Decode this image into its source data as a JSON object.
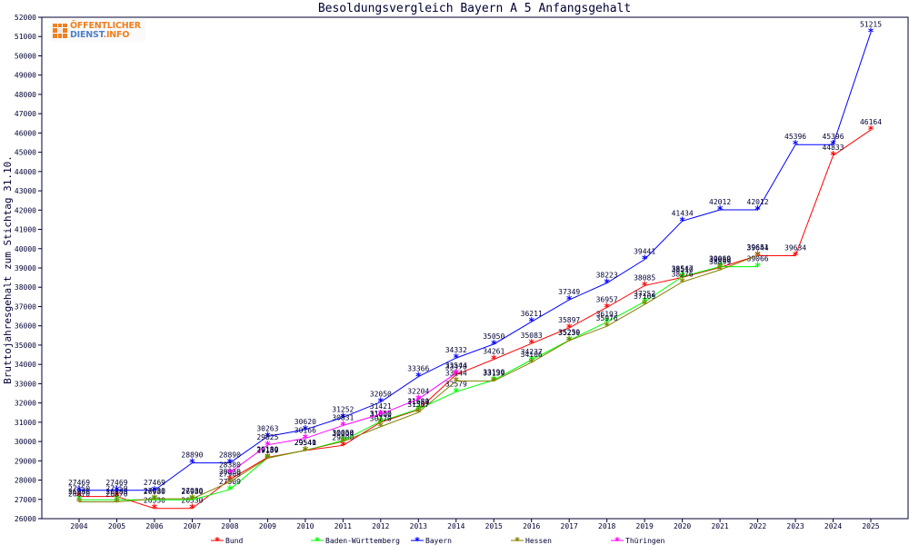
{
  "chart_data": {
    "type": "line",
    "title": "Besoldungsvergleich Bayern A 5 Anfangsgehalt",
    "xlabel": "",
    "ylabel": "Bruttojahresgehalt zum Stichtag 31.10.",
    "ylim": [
      26000,
      52000
    ],
    "ytick_step": 1000,
    "grid": false,
    "legend": "bottom",
    "categories": [
      "2004",
      "2005",
      "2006",
      "2007",
      "2008",
      "2009",
      "2010",
      "2011",
      "2012",
      "2013",
      "2014",
      "2015",
      "2016",
      "2017",
      "2018",
      "2019",
      "2020",
      "2021",
      "2022",
      "2023",
      "2024",
      "2025"
    ],
    "series": [
      {
        "name": "Bund",
        "color": "#ff0000",
        "values": [
          27150,
          27150,
          26530,
          26530,
          28030,
          29180,
          29540,
          29800,
          31000,
          31650,
          33470,
          34261,
          35083,
          35897,
          36957,
          38085,
          38510,
          39030,
          39644,
          39634,
          44833,
          46164
        ],
        "labels": [
          "27150",
          "27150",
          "26530",
          "26530",
          "28030",
          "29180",
          "29540",
          "29800",
          "31000",
          "31650",
          "33470",
          "34261",
          "35083",
          "35897",
          "36957",
          "38085",
          "38510",
          "39030",
          "39644",
          "39634",
          "44833",
          "46164"
        ]
      },
      {
        "name": "Baden-Württemberg",
        "color": "#00ff00",
        "values": [
          26980,
          26980,
          26980,
          26980,
          27509,
          29150,
          29541,
          30050,
          31050,
          31681,
          32579,
          33190,
          34237,
          35250,
          36193,
          37252,
          38547,
          39069,
          39066,
          null,
          null,
          null
        ],
        "labels": [
          "26980",
          "26980",
          "26980",
          "26980",
          "27509",
          "29150",
          "29541",
          "30050",
          "31050",
          "31681",
          "32579",
          "33190",
          "34237",
          "35250",
          "36193",
          "37252",
          "38547",
          "39069",
          "39066",
          "",
          "",
          ""
        ]
      },
      {
        "name": "Bayern",
        "color": "#0000ff",
        "values": [
          27469,
          27469,
          27469,
          28890,
          28890,
          30263,
          30620,
          31252,
          32050,
          33366,
          34332,
          35050,
          36211,
          37349,
          38223,
          39441,
          41434,
          42012,
          42012,
          45396,
          45396,
          51215
        ],
        "labels": [
          "27469",
          "27469",
          "27469",
          "28890",
          "28890",
          "30263",
          "30620",
          "31252",
          "32050",
          "33366",
          "34332",
          "35050",
          "36211",
          "37349",
          "38223",
          "39441",
          "41434",
          "42012",
          "42012",
          "45396",
          "45396",
          "51215"
        ]
      },
      {
        "name": "Hessen",
        "color": "#808000",
        "values": [
          26870,
          26870,
          27030,
          27030,
          27909,
          29139,
          29541,
          30004,
          30770,
          31507,
          33144,
          33139,
          34106,
          35239,
          35976,
          37109,
          38276,
          38899,
          39651,
          null,
          null,
          null
        ],
        "labels": [
          "26870",
          "26870",
          "27030",
          "27030",
          "27909",
          "29139",
          "29541",
          "30004",
          "30770",
          "31507",
          "33144",
          "33139",
          "34106",
          "35239",
          "35976",
          "37109",
          "38276",
          "38899",
          "39651",
          "",
          "",
          ""
        ]
      },
      {
        "name": "Thüringen",
        "color": "#ff00ff",
        "values": [
          null,
          null,
          null,
          null,
          28380,
          29825,
          30166,
          30831,
          31421,
          32204,
          33544,
          null,
          null,
          null,
          null,
          null,
          null,
          null,
          null,
          null,
          null,
          null
        ],
        "labels": [
          "",
          "",
          "",
          "",
          "28380",
          "29825",
          "30166",
          "30831",
          "31421",
          "32204",
          "33544",
          "",
          "",
          "",
          "",
          "",
          "",
          "",
          "",
          "",
          "",
          ""
        ]
      }
    ]
  },
  "logo": {
    "line1": "ÖFFENTLICHER",
    "line2_a": "DIENST",
    "line2_b": ".INFO"
  }
}
